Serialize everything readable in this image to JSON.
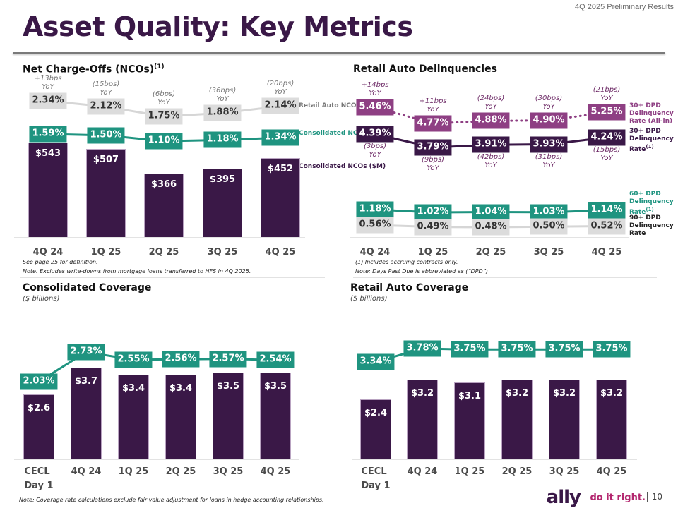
{
  "header": {
    "subtitle": "4Q 2025 Preliminary Results",
    "title": "Asset Quality: Key Metrics"
  },
  "colors": {
    "dark_purple": "#3a1847",
    "teal": "#1f9480",
    "plum": "#8e3f83",
    "grey_box": "#dcdcdc",
    "brand_pink": "#b3266e"
  },
  "footer": {
    "logo": "ally",
    "tagline": "do it right.",
    "page_number": "10"
  },
  "chart_data": [
    {
      "id": "nco",
      "type": "bar",
      "title": "Net Charge-Offs (NCOs)",
      "title_sup": "(1)",
      "categories": [
        "4Q 24",
        "1Q 25",
        "2Q 25",
        "3Q 25",
        "4Q 25"
      ],
      "series": [
        {
          "name": "Retail Auto NCO Rate",
          "kind": "line",
          "values": [
            2.34,
            2.12,
            1.75,
            1.88,
            2.14
          ],
          "labels": [
            "2.34%",
            "2.12%",
            "1.75%",
            "1.88%",
            "2.14%"
          ],
          "yoy": [
            "+13bps YoY",
            "(15bps) YoY",
            "(6bps) YoY",
            "(36bps) YoY",
            "(20bps) YoY"
          ]
        },
        {
          "name": "Consolidated NCO Rate",
          "kind": "line",
          "values": [
            1.59,
            1.5,
            1.1,
            1.18,
            1.34
          ],
          "labels": [
            "1.59%",
            "1.50%",
            "1.10%",
            "1.18%",
            "1.34%"
          ]
        },
        {
          "name": "Consolidated NCOs ($M)",
          "kind": "bar",
          "values": [
            543,
            507,
            366,
            395,
            452
          ],
          "labels": [
            "$543",
            "$507",
            "$366",
            "$395",
            "$452"
          ]
        }
      ],
      "legend": [
        "Retail Auto NCO Rate",
        "Consolidated NCO Rate",
        "Consolidated NCOs ($M)"
      ],
      "legend_placement": "right",
      "notes": [
        "See page 25 for definition.",
        "Note: Excludes write-downs from mortgage loans transferred to HFS in 4Q 2025."
      ]
    },
    {
      "id": "delinq",
      "type": "line",
      "title": "Retail Auto Delinquencies",
      "categories": [
        "4Q 24",
        "1Q 25",
        "2Q 25",
        "3Q 25",
        "4Q 25"
      ],
      "series": [
        {
          "name": "30+ DPD Delinquency Rate (All-in)",
          "style": "dotted",
          "values": [
            5.46,
            4.77,
            4.88,
            4.9,
            5.25
          ],
          "labels": [
            "5.46%",
            "4.77%",
            "4.88%",
            "4.90%",
            "5.25%"
          ],
          "yoy": [
            "+14bps YoY",
            "+11bps YoY",
            "(24bps) YoY",
            "(30bps) YoY",
            "(21bps) YoY"
          ]
        },
        {
          "name": "30+ DPD Delinquency Rate(1)",
          "style": "solid",
          "values": [
            4.39,
            3.79,
            3.91,
            3.93,
            4.24
          ],
          "labels": [
            "4.39%",
            "3.79%",
            "3.91%",
            "3.93%",
            "4.24%"
          ],
          "yoy": [
            "(3bps) YoY",
            "(9bps) YoY",
            "(42bps) YoY",
            "(31bps) YoY",
            "(15bps) YoY"
          ]
        },
        {
          "name": "60+ DPD Delinquency Rate(1)",
          "style": "solid",
          "values": [
            1.18,
            1.02,
            1.04,
            1.03,
            1.14
          ],
          "labels": [
            "1.18%",
            "1.02%",
            "1.04%",
            "1.03%",
            "1.14%"
          ]
        },
        {
          "name": "90+ DPD Delinquency Rate",
          "style": "solid",
          "values": [
            0.56,
            0.49,
            0.48,
            0.5,
            0.52
          ],
          "labels": [
            "0.56%",
            "0.49%",
            "0.48%",
            "0.50%",
            "0.52%"
          ]
        }
      ],
      "legend": {
        "all_in": [
          "30+ DPD",
          "Delinquency",
          "Rate (All-in)"
        ],
        "thirty": [
          "30+ DPD",
          "Delinquency",
          "Rate"
        ],
        "thirty_sup": "(1)",
        "sixty": [
          "60+ DPD",
          "Delinquency",
          "Rate"
        ],
        "sixty_sup": "(1)",
        "ninety": [
          "90+ DPD",
          "Delinquency",
          "Rate"
        ]
      },
      "legend_placement": "right",
      "notes": [
        "(1) Includes accruing contracts only.",
        "Note: Days Past Due is abbreviated as (“DPD”)"
      ]
    },
    {
      "id": "cons_cov",
      "type": "bar",
      "title": "Consolidated Coverage",
      "subtitle": "($ billions)",
      "categories": [
        "CECL Day 1",
        "4Q 24",
        "1Q 25",
        "2Q 25",
        "3Q 25",
        "4Q 25"
      ],
      "category_lines": [
        [
          "CECL",
          "Day 1"
        ],
        [
          "4Q 24"
        ],
        [
          "1Q 25"
        ],
        [
          "2Q 25"
        ],
        [
          "3Q 25"
        ],
        [
          "4Q 25"
        ]
      ],
      "series": [
        {
          "name": "Coverage Rate",
          "kind": "line",
          "values": [
            2.03,
            2.73,
            2.55,
            2.56,
            2.57,
            2.54
          ],
          "labels": [
            "2.03%",
            "2.73%",
            "2.55%",
            "2.56%",
            "2.57%",
            "2.54%"
          ]
        },
        {
          "name": "Allowance ($B)",
          "kind": "bar",
          "values": [
            2.6,
            3.7,
            3.4,
            3.4,
            3.5,
            3.5
          ],
          "labels": [
            "$2.6",
            "$3.7",
            "$3.4",
            "$3.4",
            "$3.5",
            "$3.5"
          ]
        }
      ],
      "notes": [
        "Note: Coverage rate calculations exclude fair value adjustment for loans in hedge accounting relationships."
      ]
    },
    {
      "id": "ra_cov",
      "type": "bar",
      "title": "Retail Auto Coverage",
      "subtitle": "($ billions)",
      "categories": [
        "CECL Day 1",
        "4Q 24",
        "1Q 25",
        "2Q 25",
        "3Q 25",
        "4Q 25"
      ],
      "category_lines": [
        [
          "CECL",
          "Day 1"
        ],
        [
          "4Q 24"
        ],
        [
          "1Q 25"
        ],
        [
          "2Q 25"
        ],
        [
          "3Q 25"
        ],
        [
          "4Q 25"
        ]
      ],
      "series": [
        {
          "name": "Coverage Rate",
          "kind": "line",
          "values": [
            3.34,
            3.78,
            3.75,
            3.75,
            3.75,
            3.75
          ],
          "labels": [
            "3.34%",
            "3.78%",
            "3.75%",
            "3.75%",
            "3.75%",
            "3.75%"
          ]
        },
        {
          "name": "Allowance ($B)",
          "kind": "bar",
          "values": [
            2.4,
            3.2,
            3.1,
            3.2,
            3.2,
            3.2
          ],
          "labels": [
            "$2.4",
            "$3.2",
            "$3.1",
            "$3.2",
            "$3.2",
            "$3.2"
          ]
        }
      ]
    }
  ]
}
